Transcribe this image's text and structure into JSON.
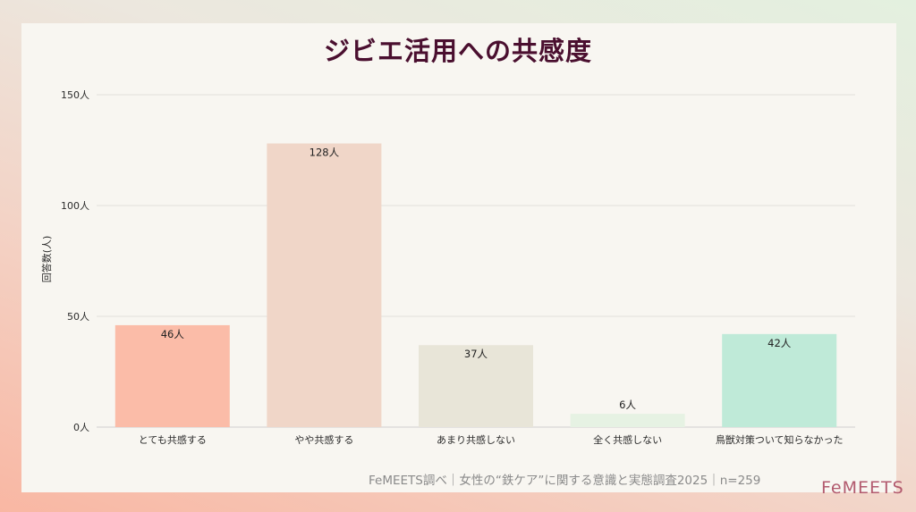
{
  "chart_data": {
    "type": "bar",
    "title": "ジビエ活用への共感度",
    "ylabel": "回答数(人)",
    "xlabel": "",
    "ylim": [
      0,
      150
    ],
    "y_ticks": [
      "0人",
      "50人",
      "100人",
      "150人"
    ],
    "y_tick_values": [
      0,
      50,
      100,
      150
    ],
    "categories": [
      "とても共感する",
      "やや共感する",
      "あまり共感しない",
      "全く共感しない",
      "鳥獣対策ついて知らなかった"
    ],
    "values": [
      46,
      128,
      37,
      6,
      42
    ],
    "data_labels": [
      "46人",
      "128人",
      "37人",
      "6人",
      "42人"
    ],
    "colors": [
      "#fbbca8",
      "#f0d6c8",
      "#e8e5d8",
      "#e6f2e3",
      "#bfead8"
    ],
    "grid": true,
    "legend": "none"
  },
  "footer": {
    "source": "FeMEETS調べ｜女性の“鉄ケア”に関する意識と実態調査2025｜n=259",
    "logo": "FeMEETS"
  }
}
